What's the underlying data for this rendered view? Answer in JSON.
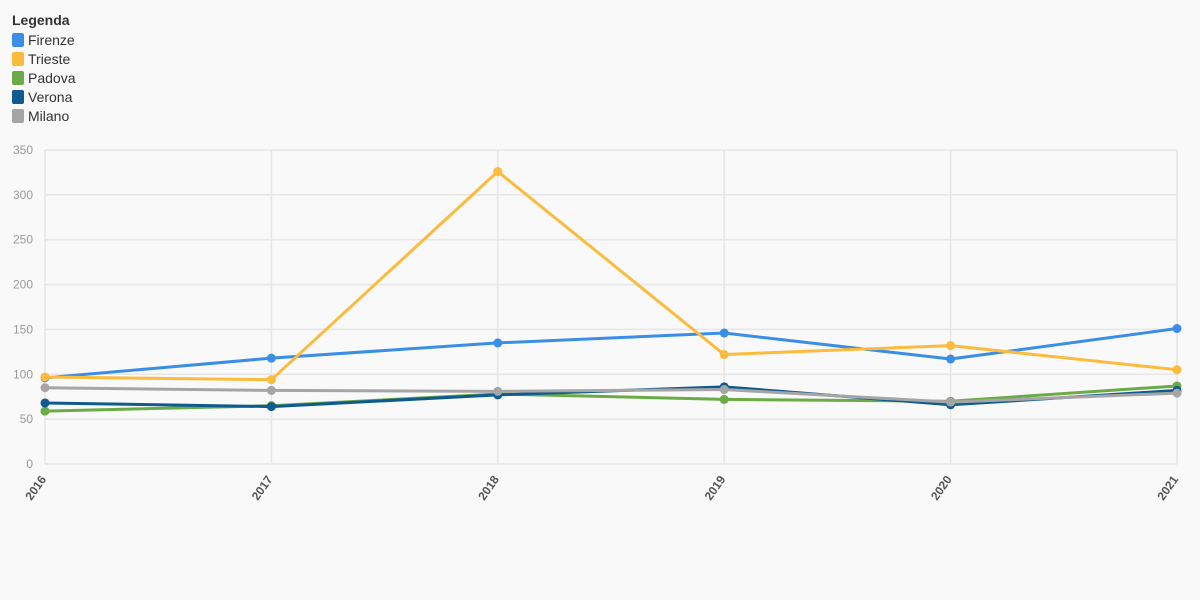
{
  "legend": {
    "title": "Legenda"
  },
  "chart_data": {
    "type": "line",
    "x": [
      "2016",
      "2017",
      "2018",
      "2019",
      "2020",
      "2021"
    ],
    "ylim": [
      0,
      350
    ],
    "yticks": [
      0,
      50,
      100,
      150,
      200,
      250,
      300,
      350
    ],
    "grid": true,
    "legend_position": "top-left",
    "series": [
      {
        "name": "Firenze",
        "color": "#3a8ee6",
        "values": [
          96,
          118,
          135,
          146,
          117,
          151
        ]
      },
      {
        "name": "Trieste",
        "color": "#fbbc3e",
        "values": [
          97,
          94,
          326,
          122,
          132,
          105
        ]
      },
      {
        "name": "Padova",
        "color": "#6aab47",
        "values": [
          59,
          65,
          78,
          72,
          70,
          87
        ]
      },
      {
        "name": "Verona",
        "color": "#0f5a8f",
        "values": [
          68,
          64,
          77,
          86,
          66,
          82
        ]
      },
      {
        "name": "Milano",
        "color": "#a5a5a5",
        "values": [
          85,
          82,
          81,
          83,
          69,
          79
        ]
      }
    ]
  }
}
